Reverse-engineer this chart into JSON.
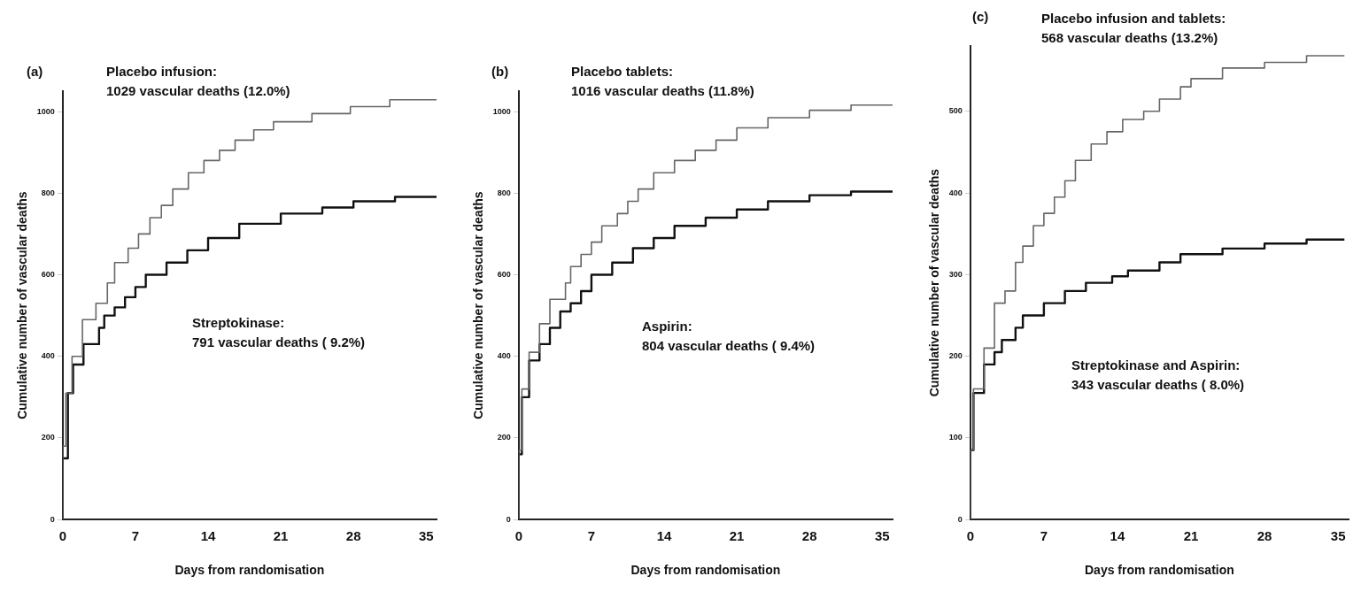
{
  "chart_data": [
    {
      "type": "step",
      "title": "(a)",
      "xlabel": "Days from randomisation",
      "ylabel": "Cumulative number of vascular deaths",
      "xlim": [
        0,
        36
      ],
      "xticks": [
        0,
        7,
        14,
        21,
        28,
        35
      ],
      "ylim": [
        0,
        1050
      ],
      "yticks": [
        0,
        200,
        400,
        600,
        800,
        1000
      ],
      "grid": false,
      "annotations": [
        "Placebo infusion:\n1029 vascular deaths (12.0%)",
        "Streptokinase:\n791 vascular deaths ( 9.2%)"
      ],
      "series": [
        {
          "color": "#666666",
          "x": [
            0,
            0.3,
            0.9,
            1.9,
            3.2,
            4.3,
            5,
            6.3,
            7.3,
            8.4,
            9.5,
            10.6,
            12.1,
            13.6,
            15.1,
            16.6,
            18.4,
            20.3,
            24,
            27.7,
            31.5,
            36
          ],
          "values": [
            0,
            180,
            310,
            400,
            490,
            530,
            580,
            630,
            665,
            700,
            740,
            770,
            810,
            850,
            880,
            905,
            930,
            955,
            975,
            995,
            1012,
            1029
          ]
        },
        {
          "color": "#111111",
          "x": [
            0,
            0.5,
            1,
            2,
            3.5,
            4,
            5,
            6,
            7,
            8,
            10,
            12,
            14,
            17,
            21,
            25,
            28,
            32,
            36
          ],
          "values": [
            0,
            150,
            310,
            380,
            430,
            470,
            500,
            520,
            545,
            570,
            600,
            630,
            660,
            690,
            725,
            750,
            765,
            780,
            791
          ]
        }
      ]
    },
    {
      "type": "step",
      "title": "(b)",
      "xlabel": "Days from randomisation",
      "ylabel": "Cumulative number of vascular deaths",
      "xlim": [
        0,
        36
      ],
      "xticks": [
        0,
        7,
        14,
        21,
        28,
        35
      ],
      "ylim": [
        0,
        1050
      ],
      "yticks": [
        0,
        200,
        400,
        600,
        800,
        1000
      ],
      "grid": false,
      "annotations": [
        "Placebo tablets:\n1016 vascular deaths (11.8%)",
        "Aspirin:\n804 vascular deaths ( 9.4%)"
      ],
      "series": [
        {
          "color": "#666666",
          "x": [
            0,
            0.3,
            1,
            2,
            3,
            4.5,
            5,
            6,
            7,
            8,
            9.5,
            10.5,
            11.5,
            13,
            15,
            17,
            19,
            21,
            24,
            28,
            32,
            36
          ],
          "values": [
            0,
            170,
            320,
            410,
            480,
            540,
            580,
            620,
            650,
            680,
            720,
            750,
            780,
            810,
            850,
            880,
            905,
            930,
            960,
            985,
            1003,
            1016
          ]
        },
        {
          "color": "#111111",
          "x": [
            0,
            0.3,
            1,
            2,
            3,
            4,
            5,
            6,
            7,
            9,
            11,
            13,
            15,
            18,
            21,
            24,
            28,
            32,
            36
          ],
          "values": [
            0,
            160,
            300,
            390,
            430,
            470,
            510,
            530,
            560,
            600,
            630,
            665,
            690,
            720,
            740,
            760,
            780,
            795,
            804
          ]
        }
      ]
    },
    {
      "type": "step",
      "title": "(c)",
      "xlabel": "Days from randomisation",
      "ylabel": "Cumulative number of vascular deaths",
      "xlim": [
        0,
        36
      ],
      "xticks": [
        0,
        7,
        14,
        21,
        28,
        35
      ],
      "ylim": [
        0,
        580
      ],
      "yticks": [
        0,
        100,
        200,
        300,
        400,
        500
      ],
      "grid": false,
      "annotations": [
        "Placebo infusion and tablets:\n568 vascular deaths (13.2%)",
        "Streptokinase and Aspirin:\n343 vascular deaths ( 8.0%)"
      ],
      "series": [
        {
          "color": "#666666",
          "x": [
            0,
            0.3,
            1.3,
            2.3,
            3.3,
            4.3,
            5,
            6,
            7,
            8,
            9,
            10,
            11.5,
            13,
            14.5,
            16.5,
            18,
            20,
            21,
            24,
            28,
            32,
            35.6
          ],
          "values": [
            0,
            85,
            160,
            210,
            265,
            280,
            315,
            335,
            360,
            375,
            395,
            415,
            440,
            460,
            475,
            490,
            500,
            515,
            530,
            540,
            553,
            560,
            568
          ]
        },
        {
          "color": "#111111",
          "x": [
            0,
            0.3,
            1.3,
            2.3,
            3,
            4.3,
            5,
            7,
            9,
            11,
            13.5,
            15,
            18,
            20,
            24,
            28,
            32,
            35.6
          ],
          "values": [
            0,
            85,
            155,
            190,
            205,
            220,
            235,
            250,
            265,
            280,
            290,
            298,
            305,
            315,
            325,
            332,
            338,
            343
          ]
        }
      ]
    }
  ]
}
